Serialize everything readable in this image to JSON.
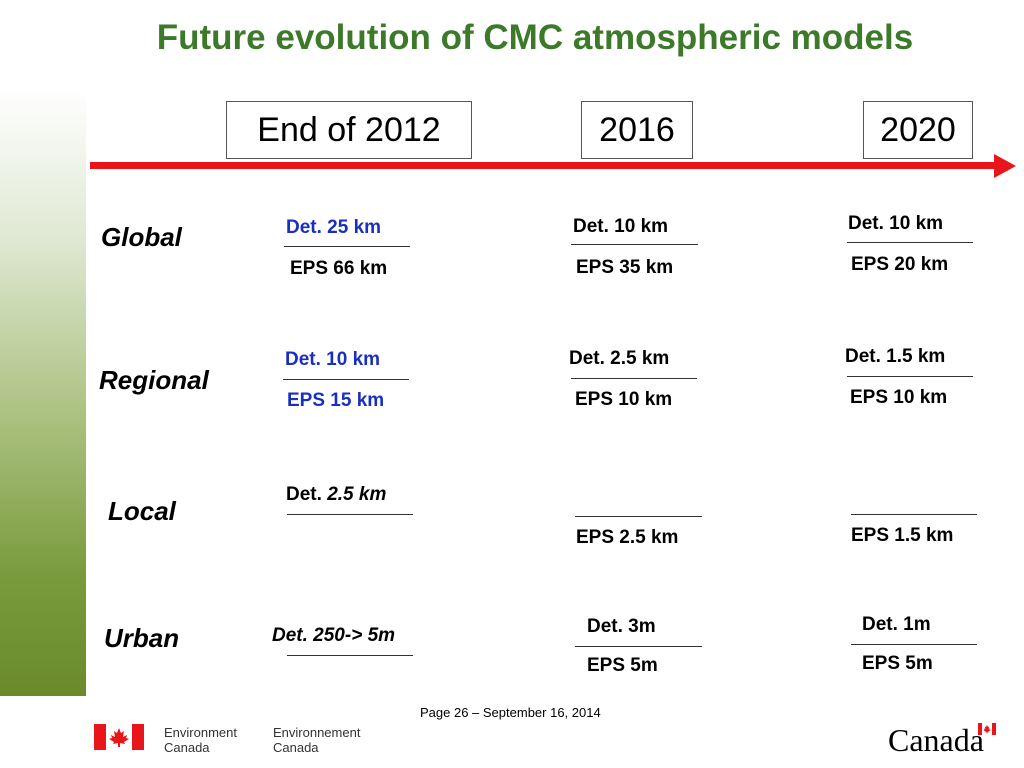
{
  "title": "Future evolution of CMC atmospheric models",
  "years": [
    "End of 2012",
    "2016",
    "2020"
  ],
  "rows": [
    {
      "label": "Global",
      "cells": [
        {
          "top": "Det.  25 km",
          "bottom": "EPS  66 km"
        },
        {
          "top": "Det.  10 km",
          "bottom": "EPS  35 km"
        },
        {
          "top": "Det.  10 km",
          "bottom": "EPS  20 km"
        }
      ]
    },
    {
      "label": "Regional",
      "cells": [
        {
          "top": "Det.  10 km",
          "bottom": "EPS  15 km"
        },
        {
          "top": "Det.  2.5 km",
          "bottom": "EPS  10 km"
        },
        {
          "top": "Det.  1.5 km",
          "bottom": "EPS  10 km"
        }
      ]
    },
    {
      "label": "Local",
      "cells": [
        {
          "top_prefix": "Det.  ",
          "top_value": "2.5 km",
          "bottom": ""
        },
        {
          "top": "",
          "bottom": "EPS  2.5 km"
        },
        {
          "top": "",
          "bottom": "EPS  1.5 km"
        }
      ]
    },
    {
      "label": "Urban",
      "cells": [
        {
          "top": "Det. 250-> 5m",
          "bottom": ""
        },
        {
          "top": "Det. 3m",
          "bottom": "EPS 5m"
        },
        {
          "top": "Det. 1m",
          "bottom": "EPS 5m"
        }
      ]
    }
  ],
  "footer": {
    "page_text": "Page 26 – September 16, 2014",
    "dept_en_1": "Environment",
    "dept_en_2": "Canada",
    "dept_fr_1": "Environnement",
    "dept_fr_2": "Canada",
    "wordmark": "Canada"
  },
  "colors": {
    "title": "#3c7a2a",
    "timeline": "#e8151b",
    "blue_text": "#1a2fbf"
  }
}
